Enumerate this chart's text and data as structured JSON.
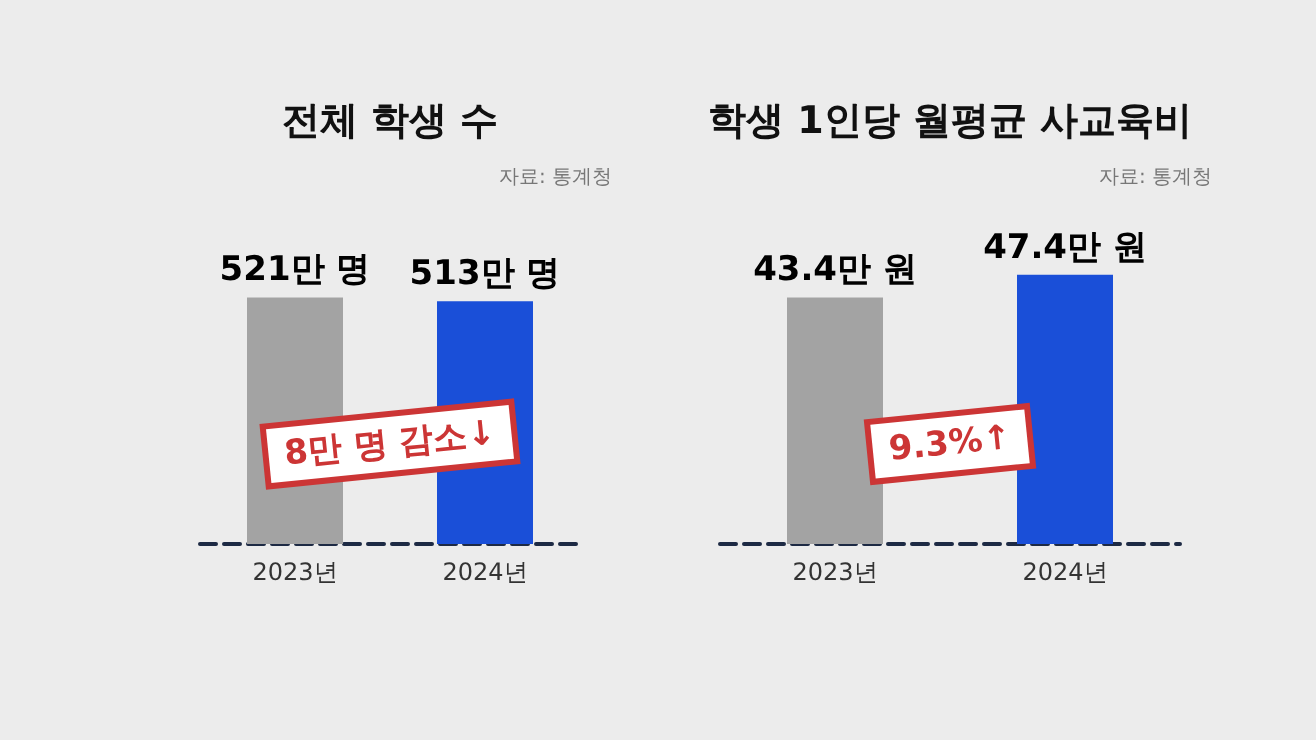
{
  "chart_data": [
    {
      "type": "bar",
      "title": "전체 학생 수",
      "categories": [
        "2023년",
        "2024년"
      ],
      "values": [
        521,
        513
      ],
      "colors": [
        "#a3a3a3",
        "#1a4fd8"
      ],
      "value_labels": [
        "521만 명",
        "513만 명"
      ],
      "annotations": [
        "자료: 통계청",
        "8만 명 감소↓"
      ]
    },
    {
      "type": "bar",
      "title": "학생 1인당 월평균 사교육비",
      "categories": [
        "2023년",
        "2024년"
      ],
      "values": [
        43.4,
        47.4
      ],
      "colors": [
        "#a3a3a3",
        "#1a4fd8"
      ],
      "value_labels": [
        "43.4만 원",
        "47.4만 원"
      ],
      "annotations": [
        "자료: 통계청",
        "9.3%↑"
      ]
    }
  ]
}
